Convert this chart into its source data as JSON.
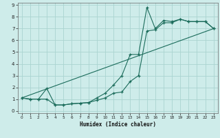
{
  "xlabel": "Humidex (Indice chaleur)",
  "bg_color": "#ceecea",
  "grid_color": "#aad4d0",
  "line_color": "#1a6b5a",
  "xlim": [
    -0.5,
    23.5
  ],
  "ylim": [
    -0.2,
    9.2
  ],
  "xtick_labels": [
    "0",
    "1",
    "2",
    "3",
    "4",
    "5",
    "6",
    "7",
    "8",
    "9",
    "10",
    "11",
    "12",
    "13",
    "14",
    "15",
    "16",
    "17",
    "18",
    "19",
    "20",
    "21",
    "22",
    "23"
  ],
  "xtick_pos": [
    0,
    1,
    2,
    3,
    4,
    5,
    6,
    7,
    8,
    9,
    10,
    11,
    12,
    13,
    14,
    15,
    16,
    17,
    18,
    19,
    20,
    21,
    22,
    23
  ],
  "ytick_pos": [
    0,
    1,
    2,
    3,
    4,
    5,
    6,
    7,
    8,
    9
  ],
  "ytick_labels": [
    "0",
    "1",
    "2",
    "3",
    "4",
    "5",
    "6",
    "7",
    "8",
    "9"
  ],
  "line1_x": [
    0,
    1,
    2,
    3,
    4,
    5,
    6,
    7,
    8,
    9,
    10,
    11,
    12,
    13,
    14,
    15,
    16,
    17,
    18,
    19,
    20,
    21,
    22,
    23
  ],
  "line1_y": [
    1.1,
    1.0,
    1.0,
    1.9,
    0.5,
    0.5,
    0.6,
    0.65,
    0.7,
    1.1,
    1.5,
    2.2,
    3.0,
    4.8,
    4.8,
    8.8,
    7.0,
    7.7,
    7.6,
    7.8,
    7.6,
    7.6,
    7.6,
    7.0
  ],
  "line2_x": [
    0,
    1,
    2,
    3,
    4,
    5,
    6,
    7,
    8,
    9,
    10,
    11,
    12,
    13,
    14,
    15,
    16,
    17,
    18,
    19,
    20,
    21,
    22,
    23
  ],
  "line2_y": [
    1.1,
    1.0,
    1.0,
    1.0,
    0.5,
    0.5,
    0.6,
    0.65,
    0.7,
    0.9,
    1.1,
    1.5,
    1.6,
    2.5,
    3.0,
    6.8,
    6.9,
    7.5,
    7.5,
    7.8,
    7.6,
    7.6,
    7.6,
    7.0
  ],
  "line3_x": [
    0,
    23
  ],
  "line3_y": [
    1.1,
    7.0
  ]
}
